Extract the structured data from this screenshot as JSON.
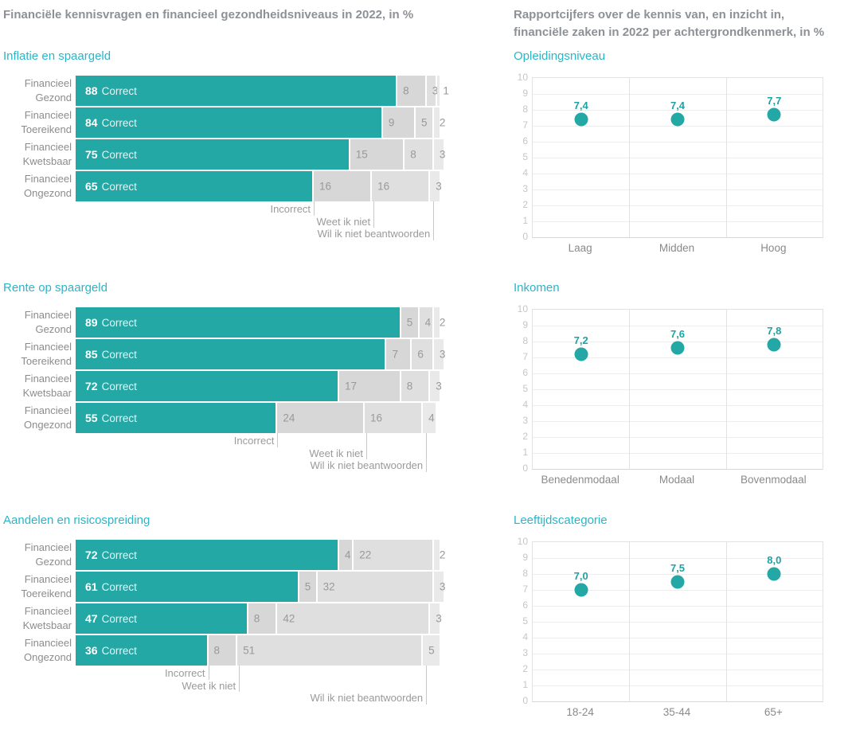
{
  "page": {
    "left_header": "Financiële kennisvragen en financieel gezondheidsniveaus in 2022, in %",
    "right_header": "Rapportcijfers over de kennis van, en inzicht in,\nfinanciële zaken in 2022 per achtergrondkenmerk, in %"
  },
  "colors": {
    "bar_teal": "#23a8a6",
    "title_teal": "#2cb5c6",
    "segment_grays": [
      "#d7d7d7",
      "#dfdfdf",
      "#e9e9e9"
    ],
    "header_gray": "#8d9196"
  },
  "chart_data": [
    {
      "type": "bar",
      "title": "Inflatie en spaargeld",
      "categories": [
        "Financieel Gezond",
        "Financieel Toereikend",
        "Financieel Kwetsbaar",
        "Financieel Ongezond"
      ],
      "series": [
        {
          "name": "Correct",
          "values": [
            88,
            84,
            75,
            65
          ]
        },
        {
          "name": "Incorrect",
          "values": [
            8,
            9,
            15,
            16
          ]
        },
        {
          "name": "Weet ik niet",
          "values": [
            3,
            5,
            8,
            16
          ]
        },
        {
          "name": "Wil ik niet beantwoorden",
          "values": [
            1,
            2,
            3,
            3
          ]
        }
      ],
      "xlim": [
        0,
        100
      ]
    },
    {
      "type": "bar",
      "title": "Rente op spaargeld",
      "categories": [
        "Financieel Gezond",
        "Financieel Toereikend",
        "Financieel Kwetsbaar",
        "Financieel Ongezond"
      ],
      "series": [
        {
          "name": "Correct",
          "values": [
            89,
            85,
            72,
            55
          ]
        },
        {
          "name": "Incorrect",
          "values": [
            5,
            7,
            17,
            24
          ]
        },
        {
          "name": "Weet ik niet",
          "values": [
            4,
            6,
            8,
            16
          ]
        },
        {
          "name": "Wil ik niet beantwoorden",
          "values": [
            2,
            3,
            3,
            4
          ]
        }
      ],
      "xlim": [
        0,
        100
      ]
    },
    {
      "type": "bar",
      "title": "Aandelen en risicospreiding",
      "categories": [
        "Financieel Gezond",
        "Financieel Toereikend",
        "Financieel Kwetsbaar",
        "Financieel Ongezond"
      ],
      "series": [
        {
          "name": "Correct",
          "values": [
            72,
            61,
            47,
            36
          ]
        },
        {
          "name": "Incorrect",
          "values": [
            4,
            5,
            8,
            8
          ]
        },
        {
          "name": "Weet ik niet",
          "values": [
            22,
            32,
            42,
            51
          ]
        },
        {
          "name": "Wil ik niet beantwoorden",
          "values": [
            2,
            3,
            3,
            5
          ]
        }
      ],
      "xlim": [
        0,
        100
      ]
    },
    {
      "type": "scatter",
      "title": "Opleidingsniveau",
      "categories": [
        "Laag",
        "Midden",
        "Hoog"
      ],
      "values": [
        7.4,
        7.4,
        7.7
      ],
      "value_labels": [
        "7,4",
        "7,4",
        "7,7"
      ],
      "ylim": [
        0,
        10
      ],
      "yticks": [
        0,
        1,
        2,
        3,
        4,
        5,
        6,
        7,
        8,
        9,
        10
      ]
    },
    {
      "type": "scatter",
      "title": "Inkomen",
      "categories": [
        "Benedenmodaal",
        "Modaal",
        "Bovenmodaal"
      ],
      "values": [
        7.2,
        7.6,
        7.8
      ],
      "value_labels": [
        "7,2",
        "7,6",
        "7,8"
      ],
      "ylim": [
        0,
        10
      ],
      "yticks": [
        0,
        1,
        2,
        3,
        4,
        5,
        6,
        7,
        8,
        9,
        10
      ]
    },
    {
      "type": "scatter",
      "title": "Leeftijdscategorie",
      "categories": [
        "18-24",
        "35-44",
        "65+"
      ],
      "values": [
        7.0,
        7.5,
        8.0
      ],
      "value_labels": [
        "7,0",
        "7,5",
        "8,0"
      ],
      "ylim": [
        0,
        10
      ],
      "yticks": [
        0,
        1,
        2,
        3,
        4,
        5,
        6,
        7,
        8,
        9,
        10
      ]
    }
  ]
}
